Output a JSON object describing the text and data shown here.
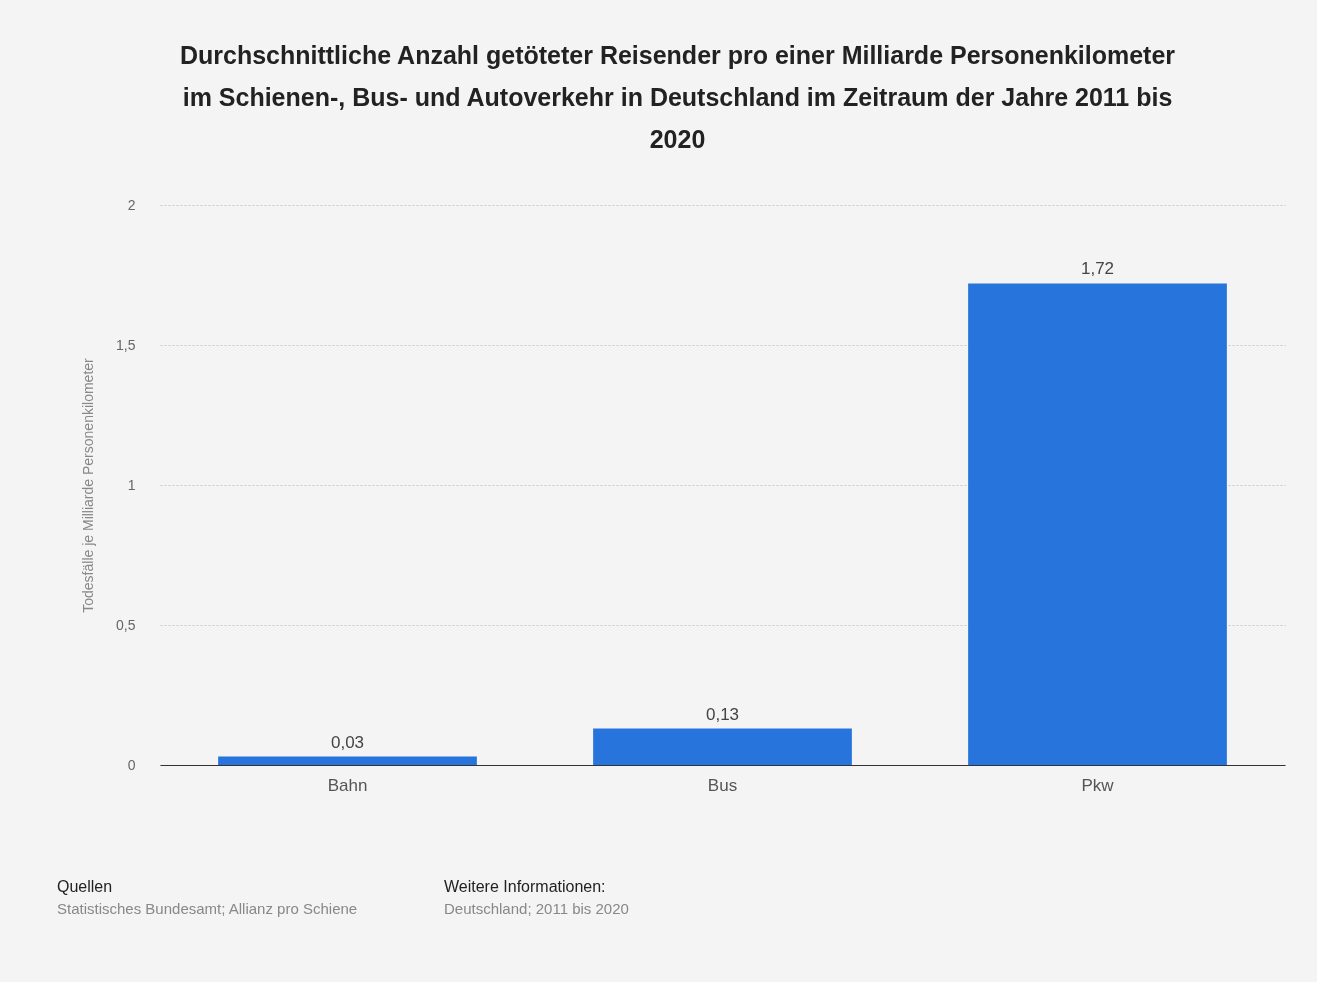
{
  "chart_data": {
    "type": "bar",
    "title": "Durchschnittliche Anzahl getöteter Reisender pro einer Milliarde Personenkilometer im Schienen-, Bus- und Autoverkehr in Deutschland im Zeitraum der Jahre 2011 bis 2020",
    "ylabel": "Todesfälle je Milliarde Personenkilometer",
    "categories": [
      "Bahn",
      "Bus",
      "Pkw"
    ],
    "values": [
      0.03,
      0.13,
      1.72
    ],
    "value_labels": [
      "0,03",
      "0,13",
      "1,72"
    ],
    "color": "#2775dc",
    "ylim": [
      0,
      2
    ],
    "yticks": [
      0,
      {
        "value": 0.5,
        "label": "0,5"
      },
      1,
      {
        "value": 1.5,
        "label": "1,5"
      },
      2
    ],
    "grid": "y",
    "annotations": [
      "Quellen",
      "Statistisches Bundesamt; Allianz pro Schiene",
      "Weitere Informationen:",
      "Deutschland; 2011 bis 2020"
    ]
  }
}
